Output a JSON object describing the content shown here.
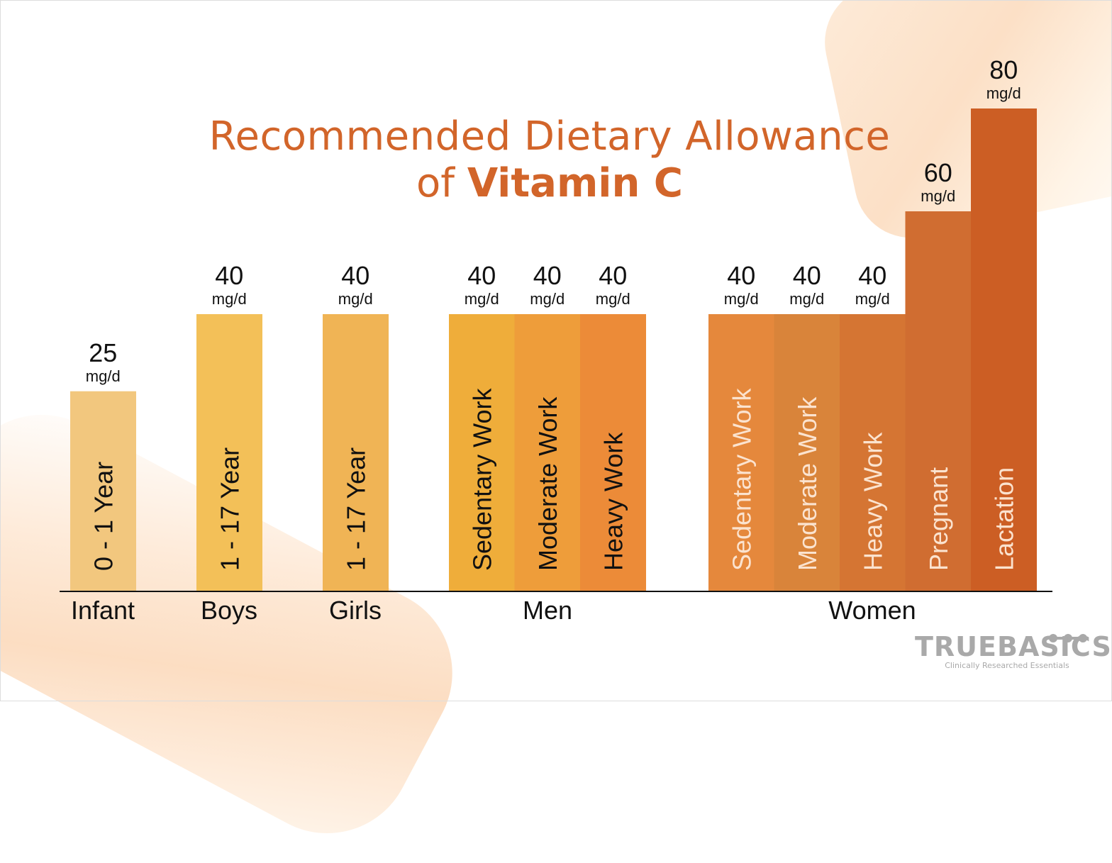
{
  "title_line1": "Recommended Dietary Allowance",
  "title_line2_prefix": "of ",
  "title_line2_bold": "Vitamin C",
  "logo": {
    "name": "TRUEBASICS",
    "tagline": "Clinically Researched Essentials",
    "registered": "®"
  },
  "chart_data": {
    "type": "bar",
    "unit": "mg/d",
    "groups": [
      "Infant",
      "Boys",
      "Girls",
      "Men",
      "Women"
    ],
    "bars": [
      {
        "group": "Infant",
        "label": "0 - 1 Year",
        "value": 25,
        "color": "#F2C77E",
        "text_color": "#111111"
      },
      {
        "group": "Boys",
        "label": "1 - 17 Year",
        "value": 40,
        "color": "#F3C058",
        "text_color": "#111111"
      },
      {
        "group": "Girls",
        "label": "1 - 17 Year",
        "value": 40,
        "color": "#F0B455",
        "text_color": "#111111"
      },
      {
        "group": "Men",
        "label": "Sedentary Work",
        "value": 40,
        "color": "#EFAD3A",
        "text_color": "#111111"
      },
      {
        "group": "Men",
        "label": "Moderate Work",
        "value": 40,
        "color": "#EE9D3A",
        "text_color": "#111111"
      },
      {
        "group": "Men",
        "label": "Heavy Work",
        "value": 40,
        "color": "#EC8B38",
        "text_color": "#111111"
      },
      {
        "group": "Women",
        "label": "Sedentary Work",
        "value": 40,
        "color": "#E5883C",
        "text_color": "#FBE3CF"
      },
      {
        "group": "Women",
        "label": "Moderate Work",
        "value": 40,
        "color": "#D9843A",
        "text_color": "#FBE3CF"
      },
      {
        "group": "Women",
        "label": "Heavy Work",
        "value": 40,
        "color": "#D57533",
        "text_color": "#FBE3CF"
      },
      {
        "group": "Women",
        "label": "Pregnant",
        "value": 60,
        "color": "#D06D31",
        "text_color": "#FBE3CF"
      },
      {
        "group": "Women",
        "label": "Lactation",
        "value": 80,
        "color": "#CC5E24",
        "text_color": "#FBE3CF"
      }
    ],
    "title_color": "#D2652A"
  }
}
